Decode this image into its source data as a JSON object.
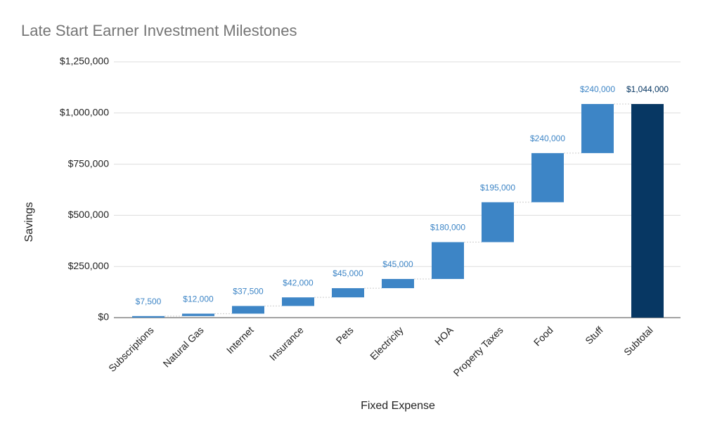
{
  "chart_data": {
    "type": "waterfall",
    "title": "Late Start Earner Investment Milestones",
    "x_label": "Fixed Expense",
    "y_label": "Savings",
    "categories": [
      "Subscriptions",
      "Natural Gas",
      "Internet",
      "Insurance",
      "Pets",
      "Electricity",
      "HOA",
      "Property Taxes",
      "Food",
      "Stuff"
    ],
    "values": [
      7500,
      12000,
      37500,
      42000,
      45000,
      45000,
      180000,
      195000,
      240000,
      240000
    ],
    "value_labels": [
      "$7,500",
      "$12,000",
      "$37,500",
      "$42,000",
      "$45,000",
      "$45,000",
      "$180,000",
      "$195,000",
      "$240,000",
      "$240,000"
    ],
    "color": "#3d85c6",
    "total": {
      "name": "Subtotal",
      "value": 1044000,
      "value_label": "$1,044,000",
      "color": "#073763"
    },
    "ylim": [
      0,
      1250000
    ],
    "yticks": [
      {
        "value": 0,
        "label": "$0"
      },
      {
        "value": 250000,
        "label": "$250,000"
      },
      {
        "value": 500000,
        "label": "$500,000"
      },
      {
        "value": 750000,
        "label": "$750,000"
      },
      {
        "value": 1000000,
        "label": "$1,000,000"
      },
      {
        "value": 1250000,
        "label": "$1,250,000"
      }
    ],
    "grid": true
  }
}
